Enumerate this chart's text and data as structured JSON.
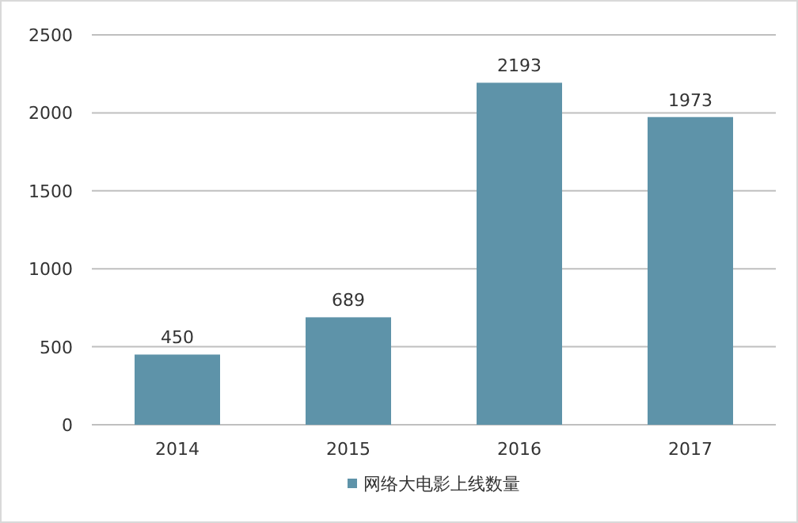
{
  "chart_data": {
    "type": "bar",
    "categories": [
      "2014",
      "2015",
      "2016",
      "2017"
    ],
    "series": [
      {
        "name": "网络大电影上线数量",
        "color": "#5e93a9",
        "values": [
          450,
          689,
          2193,
          1973
        ]
      }
    ],
    "ylim": [
      0,
      2500
    ],
    "yticks": [
      0,
      500,
      1000,
      1500,
      2000,
      2500
    ],
    "grid": "y",
    "legend": "bottom",
    "data_labels": true
  }
}
